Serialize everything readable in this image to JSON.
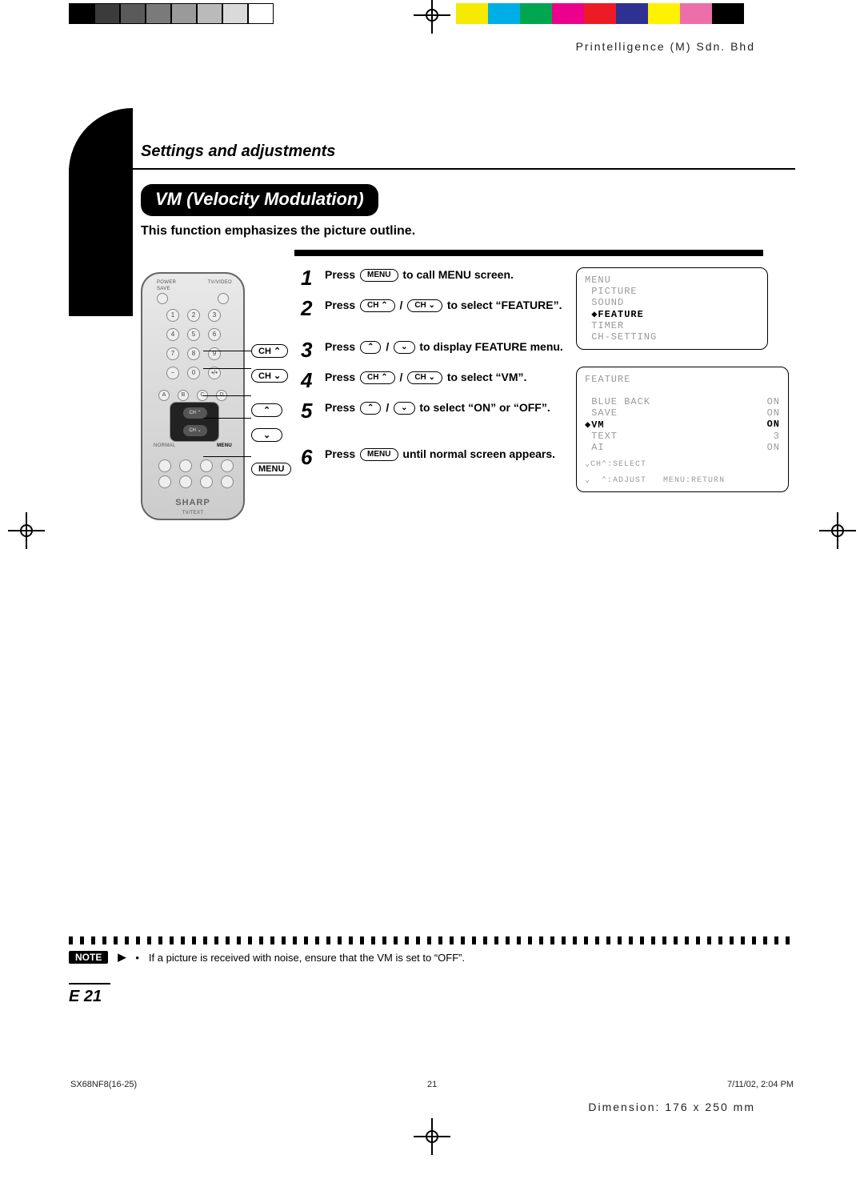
{
  "header_company": "Printelligence (M) Sdn. Bhd",
  "section_heading": "Settings and adjustments",
  "title": "VM (Velocity Modulation)",
  "subtitle": "This function emphasizes the picture outline.",
  "colorbars": {
    "left": [
      "#000000",
      "#3b3b3b",
      "#5a5a5a",
      "#7a7a7a",
      "#9a9a9a",
      "#bababa",
      "#dadada",
      "#ffffff"
    ],
    "right": [
      "#f6ea00",
      "#00aee6",
      "#00a650",
      "#ec008c",
      "#ed1c24",
      "#2e3192",
      "#fff200",
      "#ec6fa9",
      "#000000"
    ]
  },
  "remote": {
    "brand": "SHARP",
    "subtext": "TV/TEXT",
    "top_labels": [
      "POWER",
      "SAVE",
      "TV/VIDEO"
    ],
    "keypad": [
      [
        "1",
        "2",
        "3"
      ],
      [
        "4",
        "5",
        "6"
      ],
      [
        "7",
        "8",
        "9"
      ],
      [
        "−",
        "0",
        "•/•"
      ]
    ],
    "abcd": [
      "A",
      "B",
      "C",
      "D"
    ],
    "bottom_left": "NORMAL",
    "bottom_right": "MENU",
    "dpad_up": "CH ⌃",
    "dpad_down": "CH ⌄"
  },
  "remote_callouts": [
    "CH ⌃",
    "CH ⌄",
    "⌃",
    "⌄",
    "MENU"
  ],
  "steps": [
    {
      "n": "1",
      "pre": "Press ",
      "pill": "MENU",
      "post": " to call MENU screen."
    },
    {
      "n": "2",
      "pre": "Press ",
      "pill": "CH ⌃",
      "mid": " / ",
      "pill2": "CH ⌄",
      "post": " to select “FEATURE”."
    },
    {
      "n": "3",
      "pre": "Press ",
      "pill": "⌃",
      "mid": " / ",
      "pill2": "⌄",
      "post": " to display FEATURE menu."
    },
    {
      "n": "4",
      "pre": "Press ",
      "pill": "CH ⌃",
      "mid": " / ",
      "pill2": "CH ⌄",
      "post": " to select “VM”."
    },
    {
      "n": "5",
      "pre": "Press ",
      "pill": "⌃",
      "mid": " / ",
      "pill2": "⌄",
      "post": " to select “ON” or “OFF”."
    },
    {
      "n": "6",
      "pre": "Press ",
      "pill": "MENU",
      "post": " until normal screen appears."
    }
  ],
  "osd_menu": {
    "title": "MENU",
    "items": [
      "PICTURE",
      "SOUND",
      "◆FEATURE",
      "TIMER",
      "CH-SETTING"
    ],
    "highlight_index": 2
  },
  "osd_feature": {
    "title": "FEATURE",
    "rows": [
      {
        "k": " BLUE BACK",
        "v": "ON"
      },
      {
        "k": " SAVE",
        "v": "ON"
      },
      {
        "k": "◆VM",
        "v": "ON",
        "hl": true
      },
      {
        "k": " TEXT",
        "v": "3"
      },
      {
        "k": " AI",
        "v": "ON"
      }
    ],
    "hint1": "⌄CH⌃:SELECT",
    "hint2": "⌄  ⌃:ADJUST   MENU:RETURN"
  },
  "note_label": "NOTE",
  "note_bullet": "•",
  "note_text": "If a picture is received with noise, ensure that the VM is set to “OFF”.",
  "page_number": "E 21",
  "footer": {
    "file": "SX68NF8(16-25)",
    "page": "21",
    "timestamp": "7/11/02, 2:04 PM"
  },
  "dimension": "Dimension: 176 x 250 mm"
}
